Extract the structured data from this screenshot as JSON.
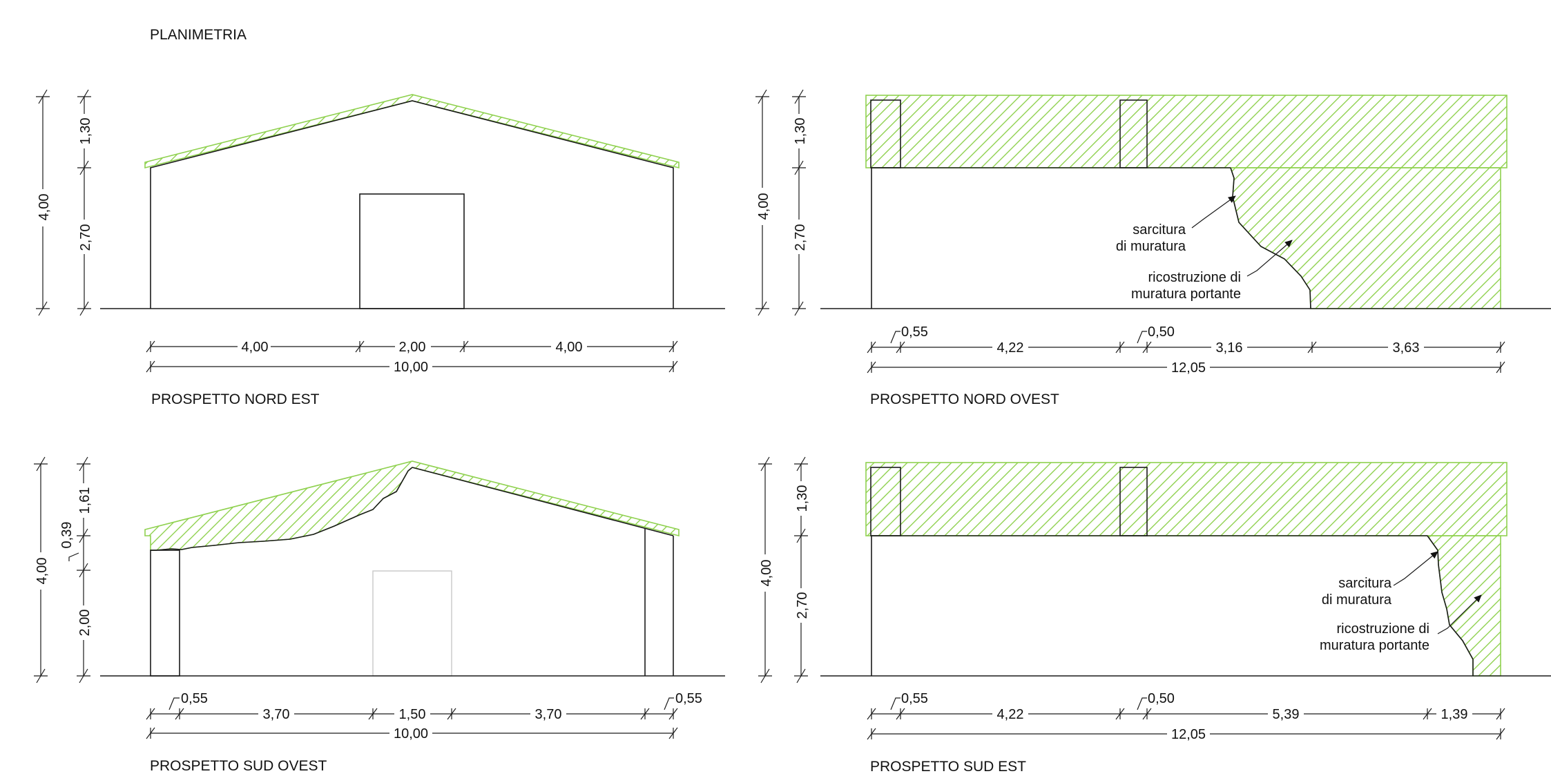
{
  "header": {
    "title": "PLANIMETRIA"
  },
  "colors": {
    "hatch": "#8fd14f",
    "line": "#1a1a1a",
    "ghost_door": "#c8c8c8"
  },
  "nord_est": {
    "title": "PROSPETTO NORD EST",
    "h_total": "4,00",
    "h_roof": "1,30",
    "h_wall": "2,70",
    "w1": "4,00",
    "w2": "2,00",
    "w3": "4,00",
    "w_total": "10,00"
  },
  "nord_ovest": {
    "title": "PROSPETTO NORD OVEST",
    "h_total": "4,00",
    "h_roof": "1,30",
    "h_wall": "2,70",
    "w1": "0,55",
    "w2": "4,22",
    "w3": "0,50",
    "w4": "3,16",
    "w5": "3,63",
    "w_total": "12,05",
    "note1_a": "sarcitura",
    "note1_b": "di muratura",
    "note2_a": "ricostruzione di",
    "note2_b": "muratura portante"
  },
  "sud_ovest": {
    "title": "PROSPETTO SUD OVEST",
    "h_total": "4,00",
    "h_roof": "1,61",
    "h_step": "0,39",
    "h_wall": "2,00",
    "w1": "0,55",
    "w2": "3,70",
    "w3": "1,50",
    "w4": "3,70",
    "w5": "0,55",
    "w_total": "10,00"
  },
  "sud_est": {
    "title": "PROSPETTO SUD EST",
    "h_total": "4,00",
    "h_roof": "1,30",
    "h_wall": "2,70",
    "w1": "0,55",
    "w2": "4,22",
    "w3": "0,50",
    "w4": "5,39",
    "w5": "1,39",
    "w_total": "12,05",
    "note1_a": "sarcitura",
    "note1_b": "di muratura",
    "note2_a": "ricostruzione di",
    "note2_b": "muratura portante"
  }
}
